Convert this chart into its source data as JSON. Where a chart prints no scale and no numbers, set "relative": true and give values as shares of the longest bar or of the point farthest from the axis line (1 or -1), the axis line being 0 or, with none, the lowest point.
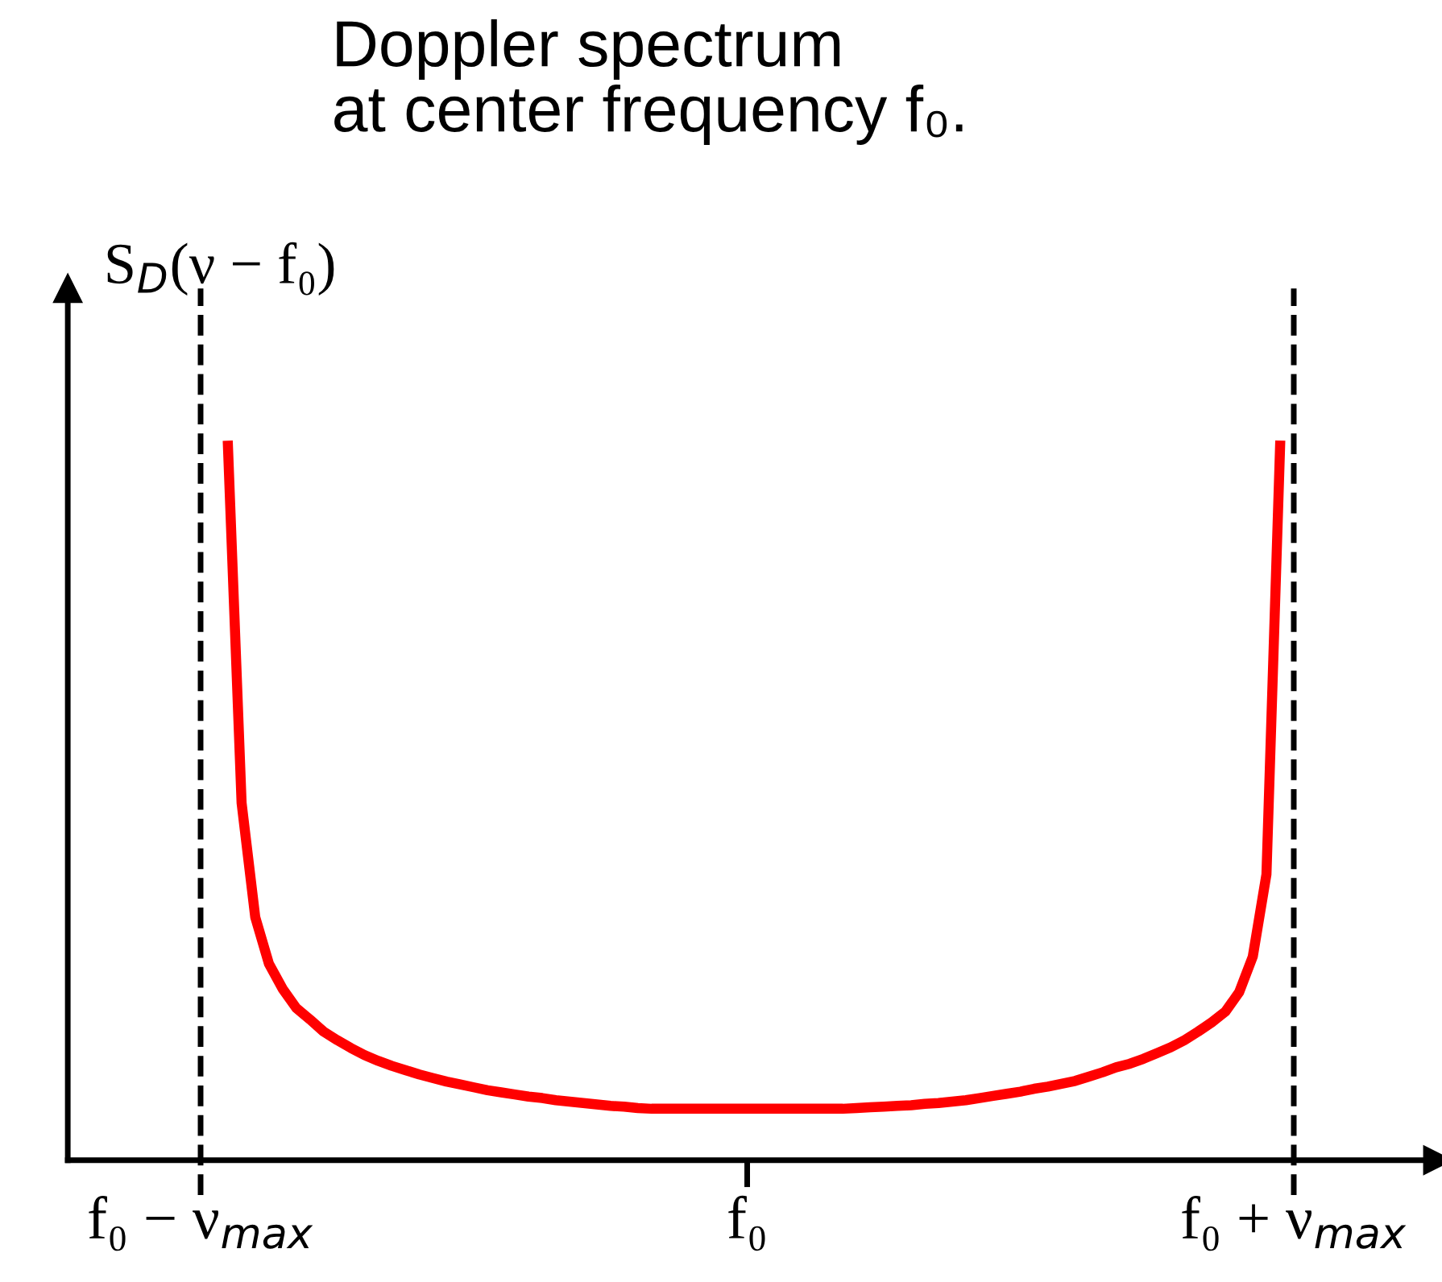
{
  "chart_data": {
    "type": "line",
    "title": "Doppler spectrum\nat center frequency f₀.",
    "ylabel": "S$_{D}$(ν − f₀)",
    "relative": true,
    "grid": false,
    "legend": false,
    "marker": "none",
    "line_style": "solid",
    "categories": [
      "f₀ − ν$_{max}$",
      null,
      null,
      null,
      null,
      null,
      null,
      null,
      null,
      null,
      null,
      null,
      null,
      null,
      null,
      null,
      null,
      null,
      null,
      null,
      null,
      null,
      null,
      null,
      null,
      null,
      null,
      null,
      null,
      null,
      null,
      null,
      null,
      null,
      null,
      null,
      null,
      null,
      null,
      null,
      "f₀",
      null,
      null,
      null,
      null,
      null,
      null,
      null,
      null,
      null,
      null,
      null,
      null,
      null,
      null,
      null,
      null,
      null,
      null,
      null,
      null,
      null,
      null,
      null,
      null,
      null,
      null,
      null,
      null,
      null,
      null,
      null,
      null,
      null,
      null,
      null,
      null,
      null,
      null,
      null,
      "f₀ + ν$_{max}$"
    ],
    "series": [
      {
        "color": "#ff0000",
        "values": [
          null,
          null,
          1.0,
          0.5,
          0.34,
          0.275,
          0.24,
          0.213,
          0.197,
          0.18,
          0.168,
          0.157,
          0.147,
          0.139,
          0.132,
          0.126,
          0.12,
          0.115,
          0.11,
          0.106,
          0.102,
          0.098,
          0.095,
          0.092,
          0.089,
          0.087,
          0.084,
          0.082,
          0.08,
          0.078,
          0.076,
          0.075,
          0.073,
          0.072,
          0.072,
          0.072,
          0.072,
          0.072,
          0.072,
          0.072,
          0.072,
          0.072,
          0.072,
          0.072,
          0.072,
          0.072,
          0.072,
          0.072,
          0.073,
          0.074,
          0.075,
          0.076,
          0.077,
          0.079,
          0.08,
          0.082,
          0.084,
          0.087,
          0.09,
          0.093,
          0.096,
          0.1,
          0.103,
          0.107,
          0.111,
          0.117,
          0.123,
          0.13,
          0.135,
          0.142,
          0.15,
          0.158,
          0.168,
          0.18,
          0.193,
          0.208,
          0.235,
          0.285,
          0.4,
          1.0,
          null
        ]
      }
    ],
    "ref_lines": [
      {
        "axis": "x",
        "value": "f₀ − ν$_{max}$",
        "label": null,
        "color": "#000000",
        "line_style": "dashed"
      },
      {
        "axis": "x",
        "value": "f₀ + ν$_{max}$",
        "label": null,
        "color": "#000000",
        "line_style": "dashed"
      }
    ]
  }
}
